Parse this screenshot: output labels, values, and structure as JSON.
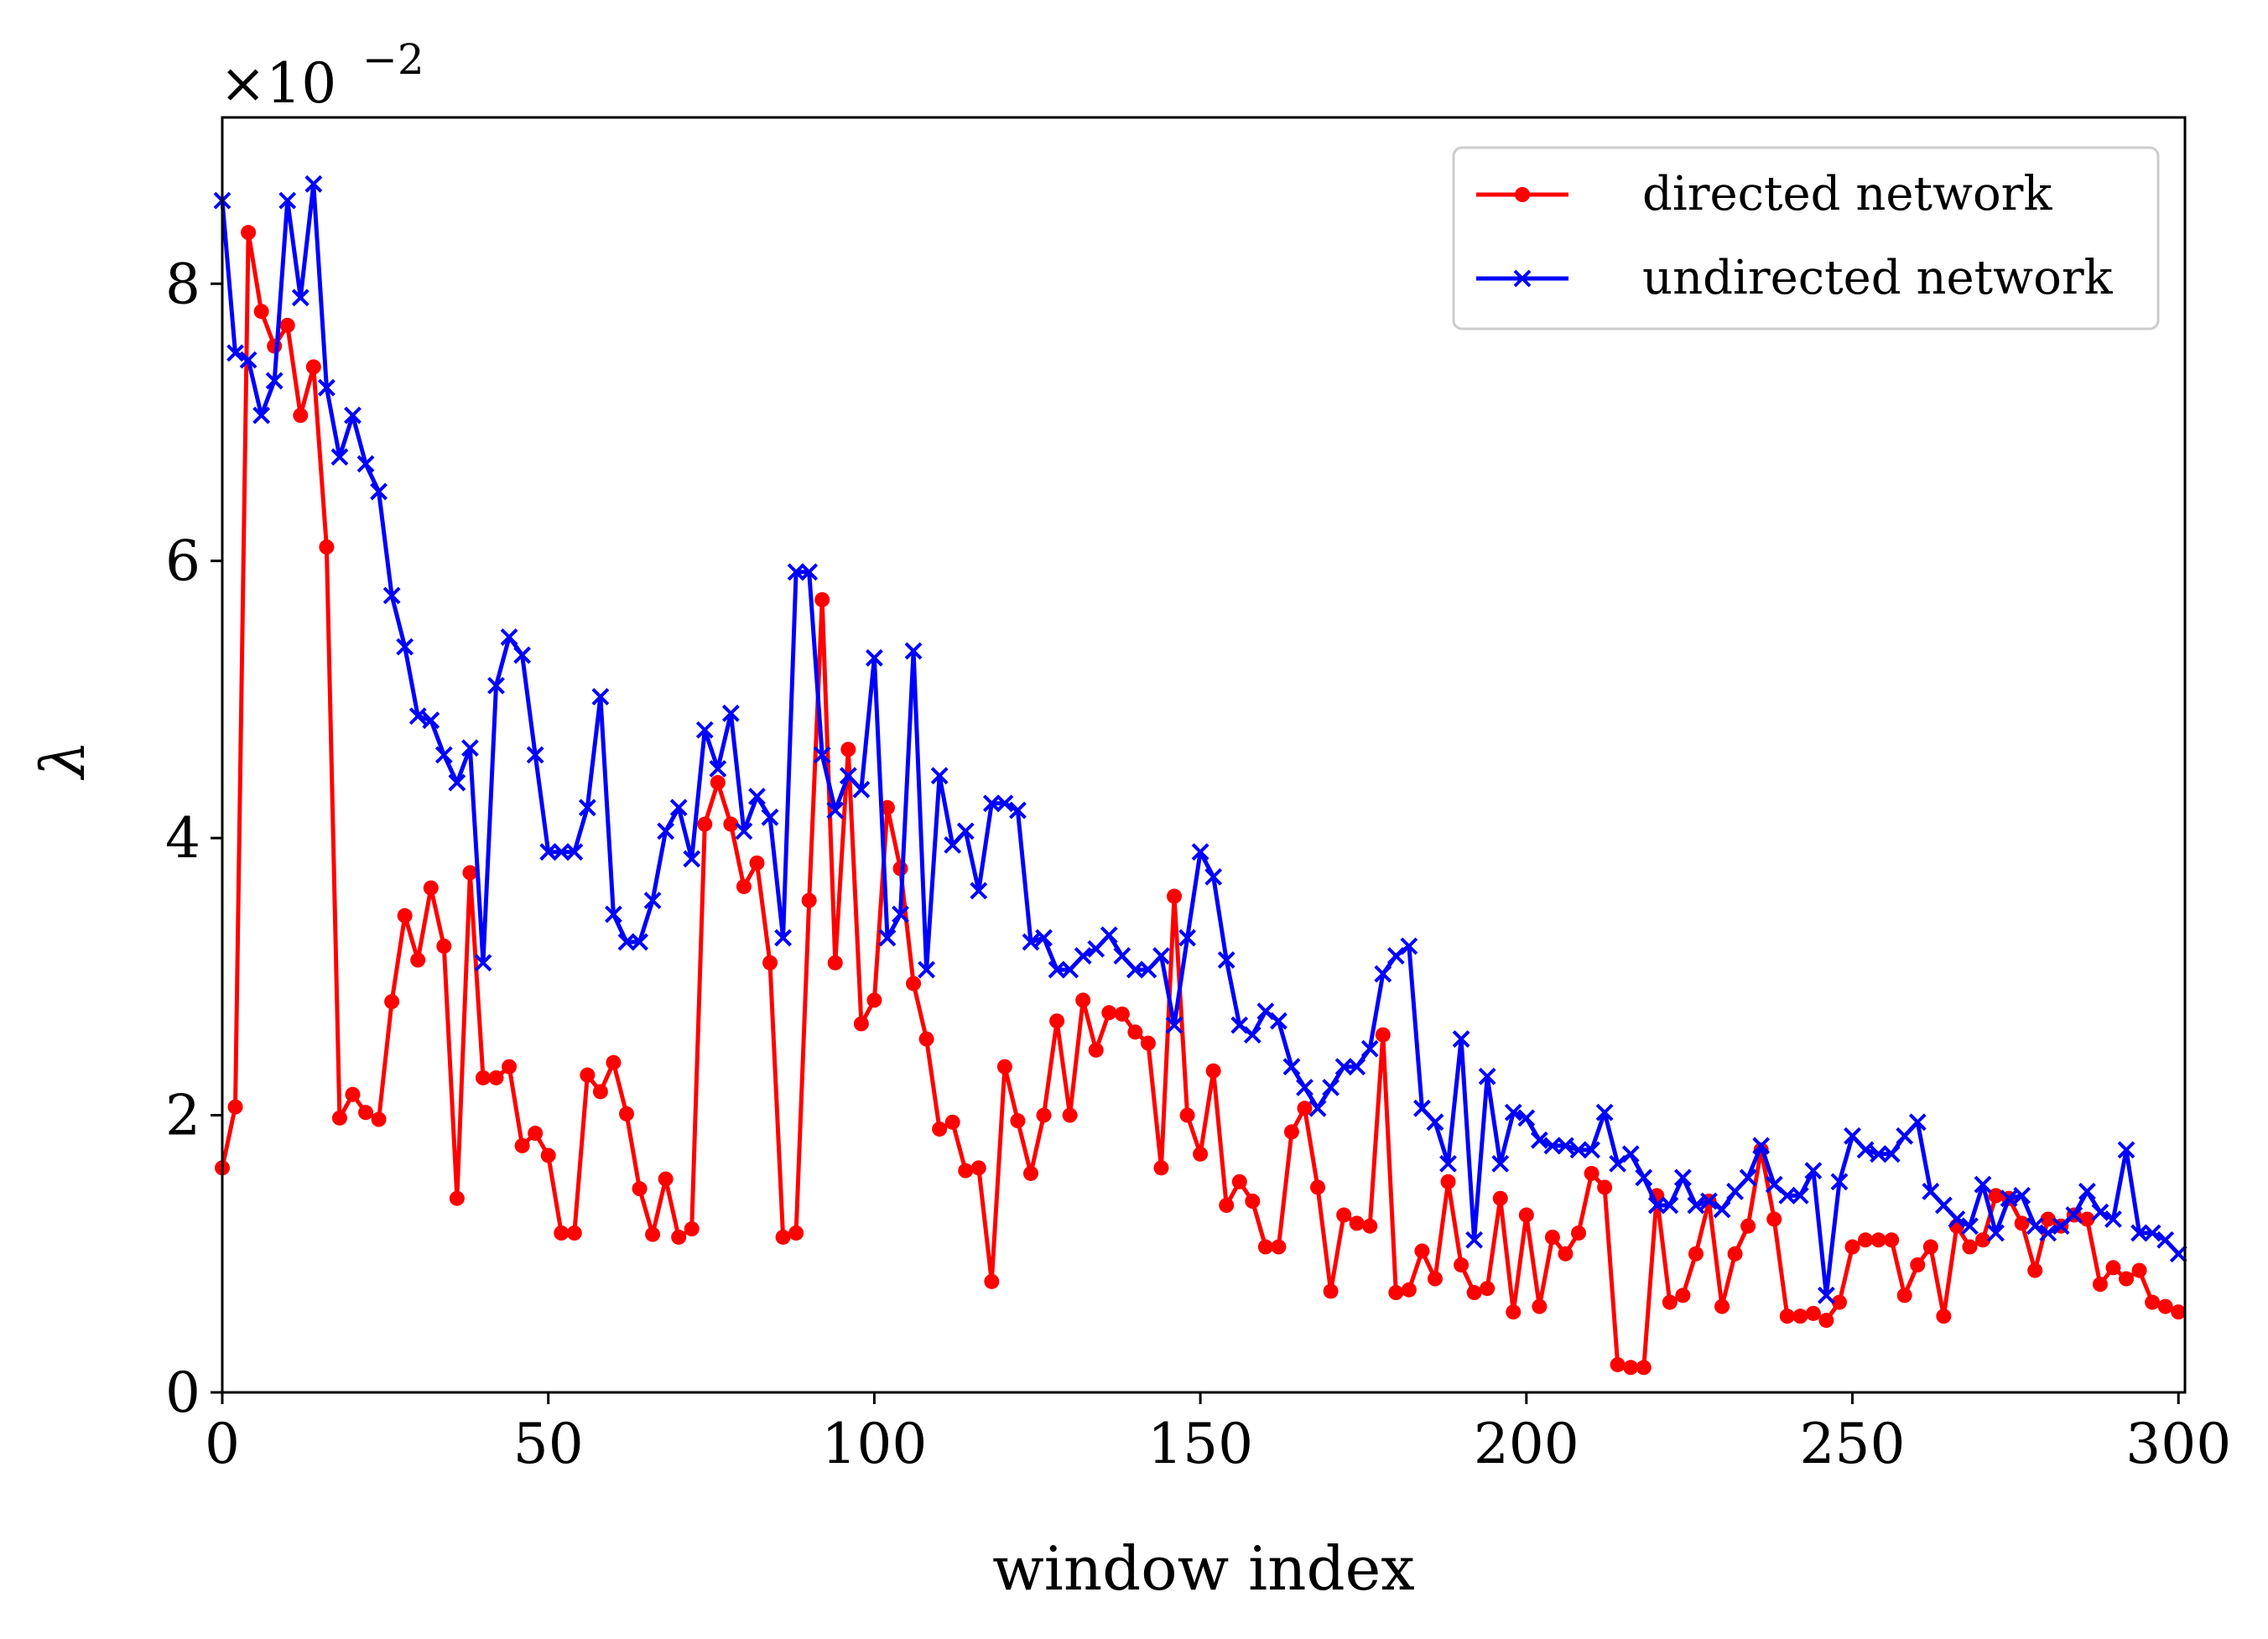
{
  "chart_data": {
    "type": "line",
    "title": "",
    "xlabel": "window index",
    "ylabel": "λ",
    "xlim": [
      0,
      301
    ],
    "ylim": [
      0,
      9.2
    ],
    "y_multiplier": {
      "base": "×10",
      "exponent": "−2"
    },
    "xticks": [
      0,
      50,
      100,
      150,
      200,
      250,
      300
    ],
    "yticks": [
      0,
      2,
      4,
      6,
      8
    ],
    "grid": false,
    "legend_position": "top-right",
    "colors": {
      "directed": "#ff0000",
      "undirected": "#0000ff"
    },
    "series": [
      {
        "name": "directed network",
        "marker": "dot",
        "color": "#ff0000",
        "x": [
          0,
          2,
          4,
          6,
          8,
          10,
          12,
          14,
          16,
          18,
          20,
          22,
          24,
          26,
          28,
          30,
          32,
          34,
          36,
          38,
          40,
          42,
          44,
          46,
          48,
          50,
          52,
          54,
          56,
          58,
          60,
          62,
          64,
          66,
          68,
          70,
          72,
          74,
          76,
          78,
          80,
          82,
          84,
          86,
          88,
          90,
          92,
          94,
          96,
          98,
          100,
          102,
          104,
          106,
          108,
          110,
          112,
          114,
          116,
          118,
          120,
          122,
          124,
          126,
          128,
          130,
          132,
          134,
          136,
          138,
          140,
          142,
          144,
          146,
          148,
          150,
          152,
          154,
          156,
          158,
          160,
          162,
          164,
          166,
          168,
          170,
          172,
          174,
          176,
          178,
          180,
          182,
          184,
          186,
          188,
          190,
          192,
          194,
          196,
          198,
          200,
          202,
          204,
          206,
          208,
          210,
          212,
          214,
          216,
          218,
          220,
          222,
          224,
          226,
          228,
          230,
          232,
          234,
          236,
          238,
          240,
          242,
          244,
          246,
          248,
          250,
          252,
          254,
          256,
          258,
          260,
          262,
          264,
          266,
          268,
          270,
          272,
          274,
          276,
          278,
          280,
          282,
          284,
          286,
          288,
          290,
          292,
          294,
          296,
          298,
          300
        ],
        "y": [
          1.62,
          2.06,
          8.37,
          7.8,
          7.55,
          7.7,
          7.05,
          7.4,
          6.1,
          1.98,
          2.15,
          2.02,
          1.97,
          2.82,
          3.44,
          3.12,
          3.64,
          3.22,
          1.4,
          3.75,
          2.27,
          2.27,
          2.35,
          1.78,
          1.87,
          1.71,
          1.15,
          1.15,
          2.29,
          2.17,
          2.38,
          2.01,
          1.47,
          1.14,
          1.54,
          1.12,
          1.18,
          4.1,
          4.4,
          4.1,
          3.65,
          3.82,
          3.1,
          1.12,
          1.15,
          3.55,
          5.72,
          3.1,
          4.64,
          2.66,
          2.83,
          4.22,
          3.78,
          2.95,
          2.55,
          1.9,
          1.95,
          1.6,
          1.62,
          0.8,
          2.35,
          1.96,
          1.58,
          2.0,
          2.68,
          2.0,
          2.83,
          2.47,
          2.74,
          2.73,
          2.6,
          2.52,
          1.62,
          3.58,
          2.0,
          1.72,
          2.32,
          1.35,
          1.52,
          1.38,
          1.05,
          1.05,
          1.88,
          2.05,
          1.48,
          0.73,
          1.28,
          1.22,
          1.2,
          2.58,
          0.72,
          0.74,
          1.02,
          0.82,
          1.52,
          0.92,
          0.72,
          0.75,
          1.4,
          0.58,
          1.28,
          0.62,
          1.12,
          1.0,
          1.15,
          1.58,
          1.48,
          0.2,
          0.18,
          0.18,
          1.42,
          0.65,
          0.7,
          1.0,
          1.38,
          0.62,
          1.0,
          1.2,
          1.75,
          1.25,
          0.55,
          0.55,
          0.57,
          0.52,
          0.65,
          1.05,
          1.1,
          1.1,
          1.1,
          0.7,
          0.92,
          1.05,
          0.55,
          1.2,
          1.05,
          1.1,
          1.42,
          1.4,
          1.22,
          0.88,
          1.25,
          1.2,
          1.28,
          1.25,
          0.78,
          0.9,
          0.82,
          0.88,
          0.65,
          0.62,
          0.58
        ]
      },
      {
        "name": "undirected network",
        "marker": "cross",
        "color": "#0000ff",
        "x": [
          0,
          2,
          4,
          6,
          8,
          10,
          12,
          14,
          16,
          18,
          20,
          22,
          24,
          26,
          28,
          30,
          32,
          34,
          36,
          38,
          40,
          42,
          44,
          46,
          48,
          50,
          52,
          54,
          56,
          58,
          60,
          62,
          64,
          66,
          68,
          70,
          72,
          74,
          76,
          78,
          80,
          82,
          84,
          86,
          88,
          90,
          92,
          94,
          96,
          98,
          100,
          102,
          104,
          106,
          108,
          110,
          112,
          114,
          116,
          118,
          120,
          122,
          124,
          126,
          128,
          130,
          132,
          134,
          136,
          138,
          140,
          142,
          144,
          146,
          148,
          150,
          152,
          154,
          156,
          158,
          160,
          162,
          164,
          166,
          168,
          170,
          172,
          174,
          176,
          178,
          180,
          182,
          184,
          186,
          188,
          190,
          192,
          194,
          196,
          198,
          200,
          202,
          204,
          206,
          208,
          210,
          212,
          214,
          216,
          218,
          220,
          222,
          224,
          226,
          228,
          230,
          232,
          234,
          236,
          238,
          240,
          242,
          244,
          246,
          248,
          250,
          252,
          254,
          256,
          258,
          260,
          262,
          264,
          266,
          268,
          270,
          272,
          274,
          276,
          278,
          280,
          282,
          284,
          286,
          288,
          290,
          292,
          294,
          296,
          298,
          300
        ],
        "y": [
          8.6,
          7.5,
          7.45,
          7.05,
          7.3,
          8.6,
          7.9,
          8.72,
          7.25,
          6.75,
          7.05,
          6.7,
          6.5,
          5.75,
          5.38,
          4.88,
          4.85,
          4.6,
          4.4,
          4.65,
          3.1,
          5.1,
          5.45,
          5.32,
          4.6,
          3.9,
          3.9,
          3.9,
          4.22,
          5.02,
          3.45,
          3.25,
          3.25,
          3.55,
          4.05,
          4.22,
          3.85,
          4.78,
          4.5,
          4.9,
          4.05,
          4.3,
          4.15,
          3.28,
          5.92,
          5.92,
          4.6,
          4.2,
          4.45,
          4.35,
          5.3,
          3.28,
          3.45,
          5.35,
          3.05,
          4.45,
          3.95,
          4.05,
          3.62,
          4.25,
          4.25,
          4.2,
          3.25,
          3.28,
          3.05,
          3.05,
          3.15,
          3.2,
          3.3,
          3.15,
          3.05,
          3.05,
          3.15,
          2.65,
          3.28,
          3.9,
          3.72,
          3.12,
          2.65,
          2.58,
          2.75,
          2.68,
          2.35,
          2.2,
          2.05,
          2.2,
          2.35,
          2.35,
          2.48,
          3.02,
          3.15,
          3.22,
          2.05,
          1.95,
          1.65,
          2.55,
          1.1,
          2.28,
          1.65,
          2.02,
          1.98,
          1.82,
          1.78,
          1.78,
          1.75,
          1.75,
          2.02,
          1.65,
          1.72,
          1.55,
          1.35,
          1.35,
          1.55,
          1.35,
          1.38,
          1.32,
          1.45,
          1.55,
          1.78,
          1.5,
          1.42,
          1.42,
          1.6,
          0.7,
          1.52,
          1.85,
          1.75,
          1.72,
          1.72,
          1.85,
          1.95,
          1.45,
          1.35,
          1.25,
          1.2,
          1.5,
          1.15,
          1.4,
          1.42,
          1.2,
          1.15,
          1.2,
          1.28,
          1.45,
          1.3,
          1.25,
          1.75,
          1.15,
          1.15,
          1.1,
          1.0
        ]
      }
    ]
  }
}
